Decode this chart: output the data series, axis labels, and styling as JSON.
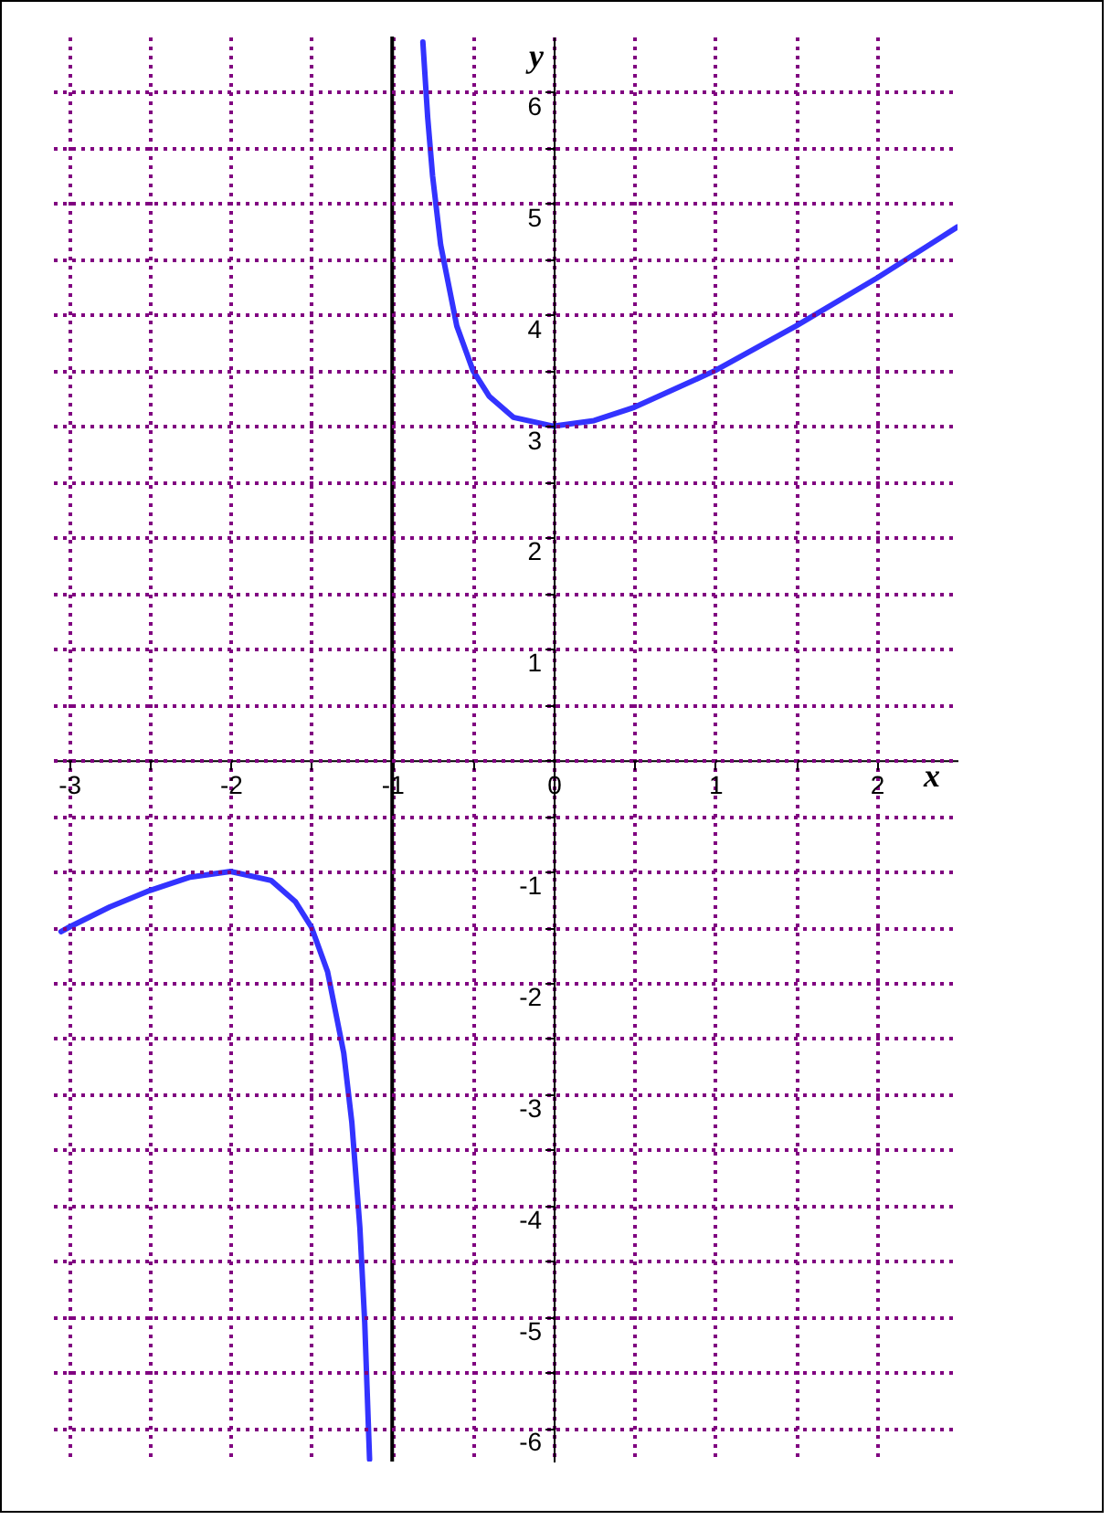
{
  "chart_data": {
    "type": "line",
    "xlabel": "x",
    "ylabel": "y",
    "xlim": [
      -3.1,
      2.5
    ],
    "ylim": [
      -6.3,
      6.5
    ],
    "xticks": [
      -3,
      {
        "value": -2.5,
        "label": null
      },
      -2,
      {
        "value": -1.5,
        "label": null
      },
      -1,
      {
        "value": -0.5,
        "label": null
      },
      0,
      {
        "value": 0.5,
        "label": null
      },
      1,
      {
        "value": 1.5,
        "label": null
      },
      2
    ],
    "yticks": [
      -6,
      {
        "value": -5.5,
        "label": null
      },
      -5,
      {
        "value": -4.5,
        "label": null
      },
      -4,
      {
        "value": -3.5,
        "label": null
      },
      -3,
      {
        "value": -2.5,
        "label": null
      },
      -2,
      {
        "value": -1.5,
        "label": null
      },
      -1,
      {
        "value": -0.5,
        "label": null
      },
      {
        "value": 0,
        "label": null
      },
      {
        "value": 0.5,
        "label": null
      },
      1,
      {
        "value": 1.5,
        "label": null
      },
      2,
      {
        "value": 2.5,
        "label": null
      },
      3,
      {
        "value": 3.5,
        "label": null
      },
      4,
      {
        "value": 4.5,
        "label": null
      },
      5,
      {
        "value": 5.5,
        "label": null
      },
      6
    ],
    "grid": true,
    "line_style": "solid",
    "marker": "none",
    "series": [
      {
        "color": "#3333ff",
        "x": [
          -3.05,
          -3,
          -2.75,
          -2.5,
          -2.25,
          -2,
          -1.75,
          -1.6,
          -1.5,
          -1.4,
          -1.3,
          -1.25,
          -1.2,
          -1.17,
          -1.14
        ],
        "values": [
          -1.54,
          -1.5,
          -1.32,
          -1.17,
          -1.05,
          -1,
          -1.08,
          -1.27,
          -1.5,
          -1.9,
          -2.63,
          -3.25,
          -4.2,
          -5.05,
          -6.28
        ]
      },
      {
        "color": "#3333ff",
        "x": [
          -0.81,
          -0.78,
          -0.75,
          -0.7,
          -0.6,
          -0.5,
          -0.4,
          -0.25,
          0,
          0.25,
          0.5,
          1,
          1.5,
          2,
          2.5
        ],
        "values": [
          6.45,
          5.77,
          5.25,
          4.63,
          3.9,
          3.5,
          3.27,
          3.08,
          3,
          3.05,
          3.17,
          3.5,
          3.9,
          4.33,
          4.79
        ]
      }
    ],
    "ref_lines": [
      {
        "axis": "x",
        "value": -1,
        "color": "#000000",
        "line_style": "solid"
      }
    ]
  }
}
